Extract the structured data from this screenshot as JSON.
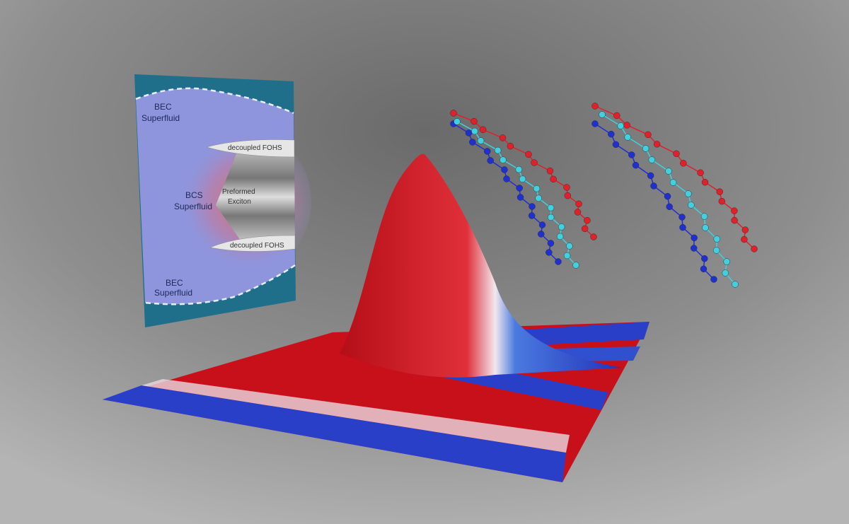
{
  "phase_diagram": {
    "bec_top": [
      "BEC",
      "Superfluid"
    ],
    "bcs": [
      "BCS",
      "Superfluid"
    ],
    "preformed": [
      "Preformed",
      "Exciton"
    ],
    "decoupled_top": "decoupled FOHS",
    "decoupled_bottom": "decoupled FOHS",
    "bec_bottom": [
      "BEC",
      "Superfluid"
    ]
  },
  "colors": {
    "panel_teal": "#1f6f8b",
    "panel_lavender": "#8e95dd",
    "bcs_red": "#e0705a",
    "surface_red": "#c8101a",
    "surface_blue": "#2a3fc8",
    "chain_red": "#e0202a",
    "chain_blue": "#2030d0",
    "chain_cyan": "#40d0e0"
  }
}
